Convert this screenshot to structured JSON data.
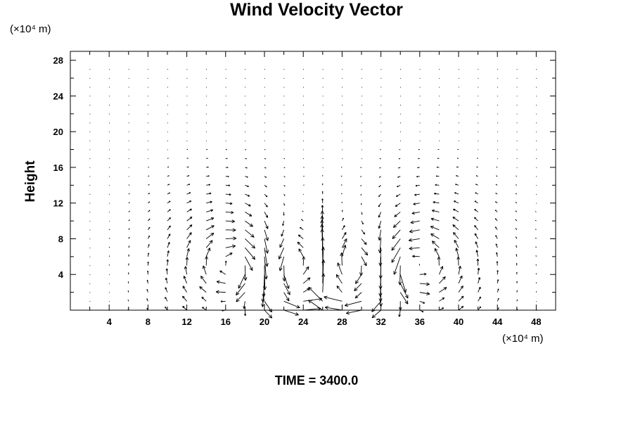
{
  "title": "Wind Velocity Vector",
  "time_label": "TIME = 3400.0",
  "chart_data": {
    "type": "vector_field",
    "title": "Wind Velocity Vector",
    "ylabel": "Height",
    "xlabel": "",
    "x_unit": "(×10⁴ m)",
    "y_unit": "(×10⁴ m)",
    "xlim": [
      0,
      50
    ],
    "ylim": [
      0,
      29
    ],
    "x_ticks": [
      4,
      8,
      12,
      16,
      20,
      24,
      28,
      32,
      36,
      40,
      44,
      48
    ],
    "y_ticks": [
      4,
      8,
      12,
      16,
      20,
      24,
      28
    ],
    "grid": false,
    "time": 3400.0,
    "field": {
      "x_start": 2,
      "x_step": 2,
      "x_count": 24,
      "y_start": 0,
      "y_step": 1,
      "y_count": 28,
      "description": "Two counter-rotating vortex pairs centered near x=20 and x=32 at height ~5; strong surface outflow at x=12-38; updraft near x=26 reaching height ~12"
    }
  }
}
